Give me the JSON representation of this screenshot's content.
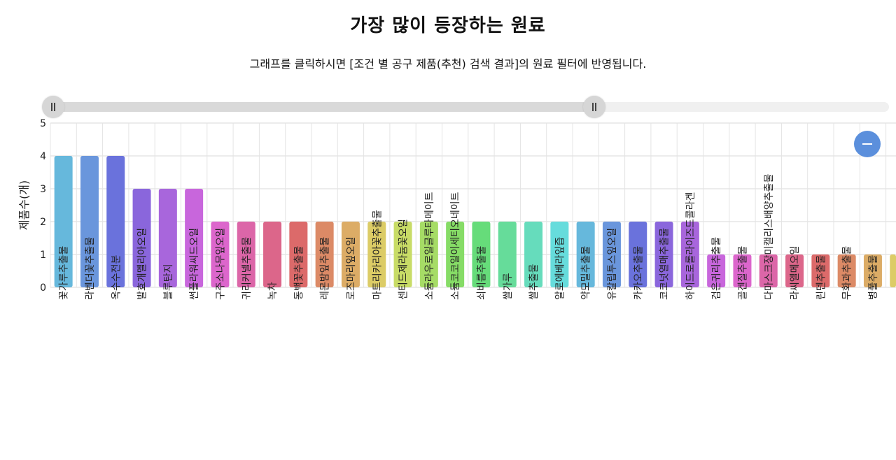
{
  "page": {
    "title": "가장 많이 등장하는 원료",
    "subtitle": "그래프를 클릭하시면 [조건 별 공구 제품(추천) 검색 결과]의 원료 필터에 반영됩니다."
  },
  "zoom": {
    "icon": "minus-icon"
  },
  "chart_data": {
    "type": "bar",
    "title": "",
    "xlabel": "",
    "ylabel": "제품수(개)",
    "ylim": [
      0,
      5
    ],
    "yticks": [
      "0",
      "1",
      "2",
      "3",
      "4",
      "5"
    ],
    "grid": true,
    "legend": "none",
    "categories": [
      "꽃가루추출물",
      "라벤더꽃추출물",
      "옥수수전분",
      "발효개멜리아오일",
      "블루탄지",
      "썬플라워씨드오일",
      "구주소나무잎오일",
      "귀리커넬추출물",
      "녹차",
      "동백꽃추출물",
      "레몬밤잎추출물",
      "로즈마리잎오일",
      "마트리카리아꽃추출물",
      "센티드제라늄꽃오일",
      "소듐라우로일글루타메이트",
      "소듐코코일이세티오네이트",
      "쇠비름추출물",
      "쌀가루",
      "쌀추출물",
      "알로에베라잎즙",
      "약모밀추출물",
      "유칼립투스잎오일",
      "카카오추출물",
      "코코넛열매추출물",
      "하이드로롤라이즈드콜라겐",
      "검은귀리추출물",
      "골겐질추출물",
      "다마스크장미캘리스배양추출물",
      "라씨엘메오일",
      "린덴추출물",
      "무화과추출물",
      "병풀추출물",
      ""
    ],
    "values": [
      4,
      4,
      4,
      3,
      3,
      3,
      2,
      2,
      2,
      2,
      2,
      2,
      2,
      2,
      2,
      2,
      2,
      2,
      2,
      2,
      2,
      2,
      2,
      2,
      2,
      1,
      1,
      1,
      1,
      1,
      1,
      1,
      1
    ],
    "colors": [
      "#66b8dc",
      "#6a96dc",
      "#6a72dc",
      "#8a66dc",
      "#a866dc",
      "#c866dc",
      "#dc66cc",
      "#dc66a8",
      "#dc668a",
      "#dc6a6a",
      "#dc8a66",
      "#dcac66",
      "#dccc66",
      "#c8dc66",
      "#a6dc66",
      "#86dc66",
      "#66dc7a",
      "#66dc9a",
      "#66dcbc",
      "#66dcdc",
      "#66b8dc",
      "#6a96dc",
      "#6a72dc",
      "#8a66dc",
      "#a866dc",
      "#c866dc",
      "#dc66cc",
      "#dc66a8",
      "#dc668a",
      "#dc6a6a",
      "#dc8a66",
      "#dcac66",
      "#dccc66"
    ]
  }
}
